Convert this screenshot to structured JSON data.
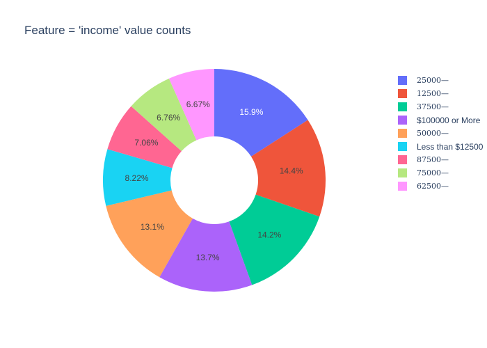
{
  "chart_data": {
    "type": "pie",
    "title": "Feature = 'income' value counts",
    "hole": true,
    "legend_position": "right",
    "labels": [
      "25000—",
      "12500—",
      "37500—",
      "$100000 or More",
      "50000—",
      "Less than $12500",
      "87500—",
      "75000—",
      "62500—"
    ],
    "percents": [
      15.9,
      14.4,
      14.2,
      13.7,
      13.1,
      8.22,
      7.06,
      6.76,
      6.67
    ],
    "value_labels": [
      "15.9%",
      "14.4%",
      "14.2%",
      "13.7%",
      "13.1%",
      "8.22%",
      "7.06%",
      "6.76%",
      "6.67%"
    ],
    "colors": [
      "#636efa",
      "#EF553B",
      "#00cc96",
      "#ab63fa",
      "#FFA15A",
      "#19d3f3",
      "#FF6692",
      "#B6E880",
      "#FF97FF"
    ],
    "label_text_colors": [
      "#ffffff",
      "#444444",
      "#444444",
      "#444444",
      "#444444",
      "#444444",
      "#444444",
      "#444444",
      "#444444"
    ]
  }
}
